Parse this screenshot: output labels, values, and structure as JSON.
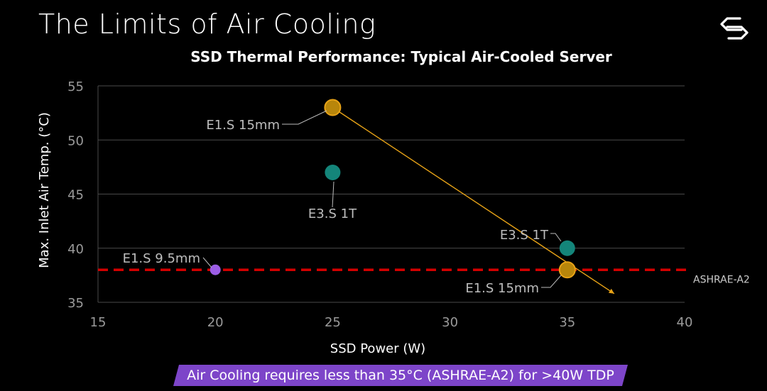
{
  "slide": {
    "title": "The Limits of Air Cooling",
    "logo_icon": "brand-logo-icon"
  },
  "banner": {
    "text": "Air Cooling requires less than 35°C (ASHRAE-A2) for >40W TDP",
    "color": "#7d45c9"
  },
  "chart_data": {
    "type": "scatter",
    "title": "SSD Thermal Performance: Typical Air-Cooled Server",
    "xlabel": "SSD Power (W)",
    "ylabel": "Max. Inlet Air Temp. (°C)",
    "xlim": [
      15,
      40
    ],
    "ylim": [
      35,
      55
    ],
    "xticks": [
      15,
      20,
      25,
      30,
      35,
      40
    ],
    "yticks": [
      35,
      40,
      45,
      50,
      55
    ],
    "grid": "horizontal",
    "points": [
      {
        "label": "E1.S 9.5mm",
        "x": 20,
        "y": 38,
        "color": "#9b5de5"
      },
      {
        "label": "E1.S 15mm",
        "x": 25,
        "y": 53,
        "color": "#b8860b"
      },
      {
        "label": "E3.S 1T",
        "x": 25,
        "y": 47,
        "color": "#14857a"
      },
      {
        "label": "E3.S 1T",
        "x": 35,
        "y": 40,
        "color": "#14857a"
      },
      {
        "label": "E1.S 15mm",
        "x": 35,
        "y": 38,
        "color": "#b8860b"
      }
    ],
    "trend_line": {
      "from": [
        25,
        53
      ],
      "to": [
        37,
        35.8
      ],
      "color": "#e8a317"
    },
    "threshold": {
      "label": "ASHRAE-A2",
      "y": 38,
      "color": "#d40000"
    }
  }
}
